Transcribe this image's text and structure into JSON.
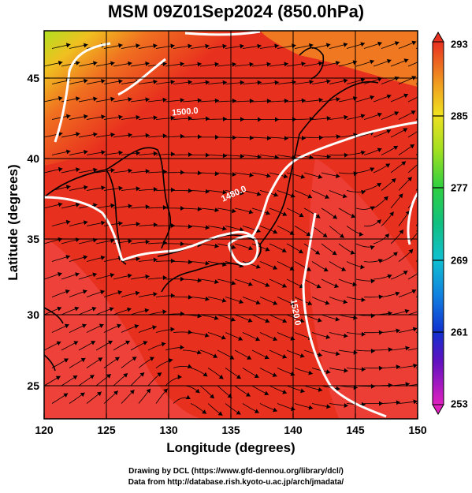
{
  "title": "MSM 09Z01Sep2024 (850.0hPa)",
  "axes": {
    "xlabel": "Longitude (degrees)",
    "ylabel": "Latitude  (degrees)",
    "xticks": [
      "120",
      "125",
      "130",
      "135",
      "140",
      "145",
      "150"
    ],
    "yticks": [
      "25",
      "30",
      "35",
      "40",
      "45"
    ],
    "xrange": [
      120,
      150
    ],
    "yrange": [
      22.4,
      47.6
    ]
  },
  "colorbar": {
    "ticks": [
      "293",
      "285",
      "277",
      "269",
      "261",
      "253"
    ],
    "range": [
      253,
      293
    ]
  },
  "contour_labels": [
    "1480.0",
    "1500.0",
    "1520.0"
  ],
  "credits": {
    "line1": "Drawing by DCL (https://www.gfd-dennou.org/library/dcl/)",
    "line2": "Data from http://database.rish.kyoto-u.ac.jp/arch/jmadata/"
  },
  "colors": {
    "warm": "#e8301e",
    "hot": "#f25050",
    "mid": "#f07820",
    "cool": "#f4c020",
    "cold": "#a8e020",
    "contour": "#ffffff",
    "coast": "#000000"
  }
}
